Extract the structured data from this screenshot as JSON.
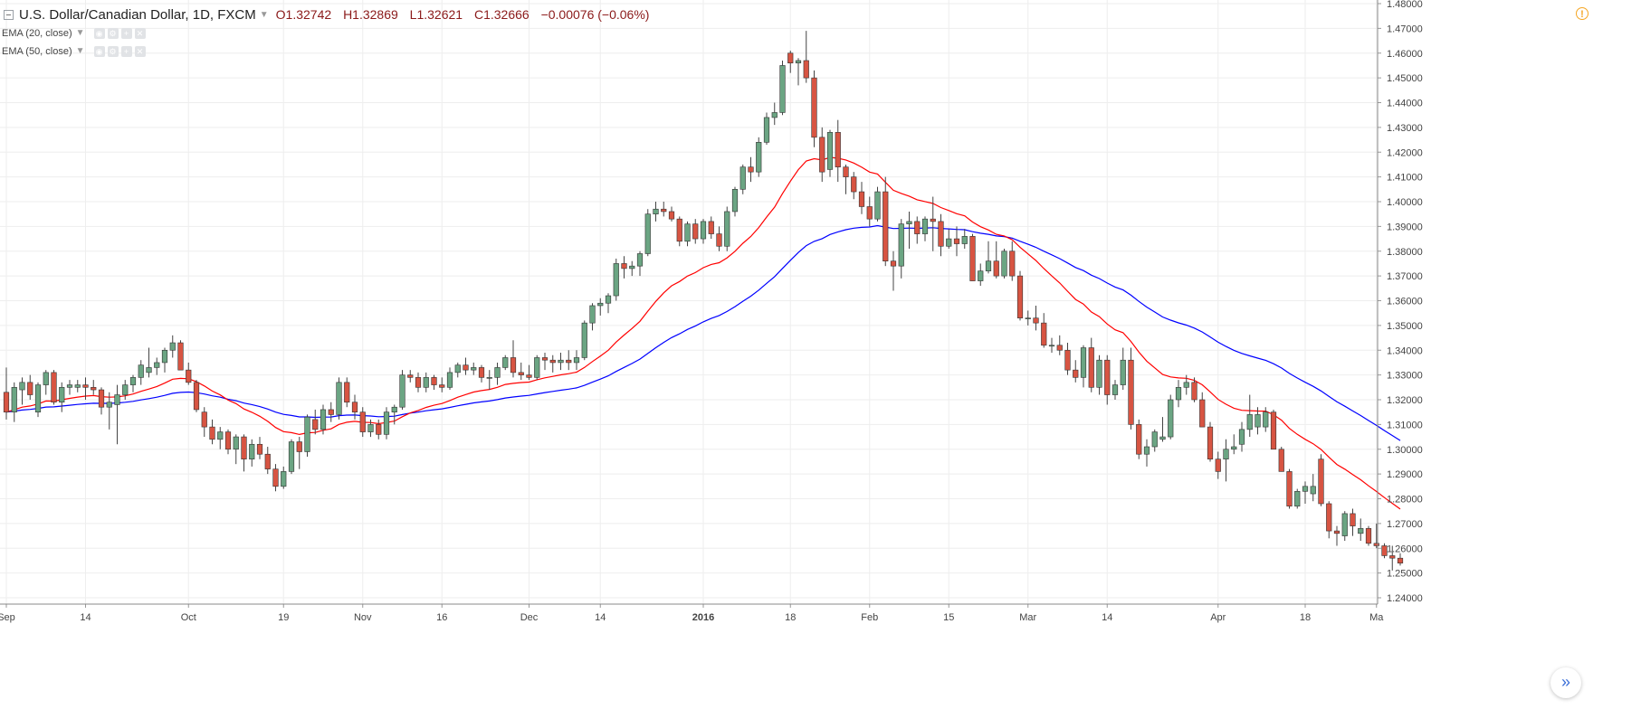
{
  "header": {
    "symbol_title": "U.S. Dollar/Canadian Dollar, 1D, FXCM",
    "open": "O1.32742",
    "high": "H1.32869",
    "low": "L1.32621",
    "close": "C1.32666",
    "change": "−0.00076 (−0.06%)",
    "indicators": [
      {
        "label": "EMA (20, close)"
      },
      {
        "label": "EMA (50, close)"
      }
    ],
    "alert_icon": "exclamation-icon",
    "scroll_icon": "double-chevron-right-icon"
  },
  "colors": {
    "up": "#6ba583",
    "down": "#d75442",
    "ema20": "#ff0000",
    "ema50": "#0000ff",
    "grid": "#eeeeee",
    "axis_text": "#444444",
    "header_values": "#8b1a1a"
  },
  "chart_data": {
    "type": "candlestick",
    "title": "U.S. Dollar/Canadian Dollar, 1D, FXCM",
    "y_axis_position": "right",
    "ylim": [
      1.24,
      1.48
    ],
    "y_ticks": [
      "1.24000",
      "1.25000",
      "1.26000",
      "1.27000",
      "1.28000",
      "1.29000",
      "1.30000",
      "1.31000",
      "1.32000",
      "1.33000",
      "1.34000",
      "1.35000",
      "1.36000",
      "1.37000",
      "1.38000",
      "1.39000",
      "1.40000",
      "1.41000",
      "1.42000",
      "1.43000",
      "1.44000",
      "1.45000",
      "1.46000",
      "1.47000",
      "1.48000"
    ],
    "x_ticks": [
      {
        "label": "Sep",
        "bar": 0,
        "bold": false
      },
      {
        "label": "14",
        "bar": 10,
        "bold": false
      },
      {
        "label": "Oct",
        "bar": 23,
        "bold": false
      },
      {
        "label": "19",
        "bar": 35,
        "bold": false
      },
      {
        "label": "Nov",
        "bar": 45,
        "bold": false
      },
      {
        "label": "16",
        "bar": 55,
        "bold": false
      },
      {
        "label": "Dec",
        "bar": 66,
        "bold": false
      },
      {
        "label": "14",
        "bar": 75,
        "bold": false
      },
      {
        "label": "2016",
        "bar": 88,
        "bold": true
      },
      {
        "label": "18",
        "bar": 99,
        "bold": false
      },
      {
        "label": "Feb",
        "bar": 109,
        "bold": false
      },
      {
        "label": "15",
        "bar": 119,
        "bold": false
      },
      {
        "label": "Mar",
        "bar": 129,
        "bold": false
      },
      {
        "label": "14",
        "bar": 139,
        "bold": false
      },
      {
        "label": "Apr",
        "bar": 153,
        "bold": false
      },
      {
        "label": "18",
        "bar": 164,
        "bold": false
      },
      {
        "label": "Ma",
        "bar": 173,
        "bold": false
      }
    ],
    "candles": [
      [
        1.323,
        1.333,
        1.312,
        1.315
      ],
      [
        1.315,
        1.327,
        1.311,
        1.325
      ],
      [
        1.324,
        1.329,
        1.318,
        1.327
      ],
      [
        1.327,
        1.33,
        1.32,
        1.322
      ],
      [
        1.315,
        1.327,
        1.313,
        1.326
      ],
      [
        1.326,
        1.332,
        1.322,
        1.331
      ],
      [
        1.331,
        1.332,
        1.318,
        1.319
      ],
      [
        1.319,
        1.327,
        1.315,
        1.325
      ],
      [
        1.325,
        1.328,
        1.322,
        1.326
      ],
      [
        1.325,
        1.328,
        1.323,
        1.326
      ],
      [
        1.326,
        1.329,
        1.32,
        1.325
      ],
      [
        1.325,
        1.328,
        1.322,
        1.324
      ],
      [
        1.324,
        1.325,
        1.314,
        1.317
      ],
      [
        1.317,
        1.323,
        1.308,
        1.319
      ],
      [
        1.318,
        1.326,
        1.302,
        1.322
      ],
      [
        1.322,
        1.328,
        1.32,
        1.326
      ],
      [
        1.326,
        1.33,
        1.323,
        1.329
      ],
      [
        1.329,
        1.336,
        1.326,
        1.334
      ],
      [
        1.331,
        1.341,
        1.329,
        1.333
      ],
      [
        1.333,
        1.337,
        1.33,
        1.335
      ],
      [
        1.335,
        1.341,
        1.331,
        1.34
      ],
      [
        1.34,
        1.346,
        1.337,
        1.343
      ],
      [
        1.343,
        1.344,
        1.333,
        1.332
      ],
      [
        1.332,
        1.335,
        1.326,
        1.327
      ],
      [
        1.327,
        1.328,
        1.315,
        1.316
      ],
      [
        1.315,
        1.317,
        1.305,
        1.309
      ],
      [
        1.309,
        1.312,
        1.302,
        1.304
      ],
      [
        1.304,
        1.309,
        1.3,
        1.307
      ],
      [
        1.307,
        1.308,
        1.298,
        1.3
      ],
      [
        1.3,
        1.306,
        1.294,
        1.305
      ],
      [
        1.305,
        1.306,
        1.291,
        1.296
      ],
      [
        1.296,
        1.304,
        1.293,
        1.302
      ],
      [
        1.302,
        1.305,
        1.296,
        1.298
      ],
      [
        1.298,
        1.301,
        1.29,
        1.292
      ],
      [
        1.292,
        1.294,
        1.283,
        1.285
      ],
      [
        1.285,
        1.293,
        1.284,
        1.291
      ],
      [
        1.291,
        1.304,
        1.29,
        1.303
      ],
      [
        1.303,
        1.305,
        1.292,
        1.299
      ],
      [
        1.299,
        1.314,
        1.297,
        1.313
      ],
      [
        1.312,
        1.316,
        1.306,
        1.308
      ],
      [
        1.308,
        1.318,
        1.306,
        1.316
      ],
      [
        1.316,
        1.319,
        1.311,
        1.314
      ],
      [
        1.314,
        1.329,
        1.312,
        1.327
      ],
      [
        1.327,
        1.329,
        1.317,
        1.319
      ],
      [
        1.319,
        1.322,
        1.312,
        1.315
      ],
      [
        1.315,
        1.317,
        1.305,
        1.307
      ],
      [
        1.307,
        1.312,
        1.305,
        1.31
      ],
      [
        1.31,
        1.312,
        1.304,
        1.306
      ],
      [
        1.306,
        1.317,
        1.304,
        1.315
      ],
      [
        1.315,
        1.318,
        1.31,
        1.317
      ],
      [
        1.317,
        1.332,
        1.316,
        1.33
      ],
      [
        1.33,
        1.332,
        1.327,
        1.329
      ],
      [
        1.329,
        1.331,
        1.323,
        1.325
      ],
      [
        1.325,
        1.331,
        1.323,
        1.329
      ],
      [
        1.329,
        1.33,
        1.324,
        1.326
      ],
      [
        1.326,
        1.329,
        1.323,
        1.325
      ],
      [
        1.325,
        1.333,
        1.324,
        1.331
      ],
      [
        1.331,
        1.335,
        1.329,
        1.334
      ],
      [
        1.334,
        1.337,
        1.33,
        1.332
      ],
      [
        1.332,
        1.335,
        1.33,
        1.333
      ],
      [
        1.333,
        1.334,
        1.327,
        1.329
      ],
      [
        1.329,
        1.332,
        1.324,
        1.329
      ],
      [
        1.329,
        1.335,
        1.326,
        1.333
      ],
      [
        1.333,
        1.338,
        1.332,
        1.337
      ],
      [
        1.337,
        1.344,
        1.329,
        1.331
      ],
      [
        1.331,
        1.335,
        1.328,
        1.33
      ],
      [
        1.33,
        1.334,
        1.328,
        1.329
      ],
      [
        1.329,
        1.338,
        1.328,
        1.337
      ],
      [
        1.337,
        1.339,
        1.332,
        1.336
      ],
      [
        1.336,
        1.338,
        1.331,
        1.335
      ],
      [
        1.335,
        1.339,
        1.332,
        1.336
      ],
      [
        1.336,
        1.34,
        1.332,
        1.335
      ],
      [
        1.335,
        1.34,
        1.332,
        1.337
      ],
      [
        1.337,
        1.352,
        1.336,
        1.351
      ],
      [
        1.351,
        1.359,
        1.348,
        1.358
      ],
      [
        1.358,
        1.361,
        1.354,
        1.359
      ],
      [
        1.359,
        1.363,
        1.355,
        1.362
      ],
      [
        1.362,
        1.377,
        1.36,
        1.375
      ],
      [
        1.375,
        1.378,
        1.369,
        1.373
      ],
      [
        1.373,
        1.376,
        1.37,
        1.374
      ],
      [
        1.374,
        1.38,
        1.37,
        1.379
      ],
      [
        1.379,
        1.397,
        1.378,
        1.395
      ],
      [
        1.395,
        1.4,
        1.392,
        1.397
      ],
      [
        1.397,
        1.4,
        1.394,
        1.396
      ],
      [
        1.396,
        1.398,
        1.392,
        1.393
      ],
      [
        1.393,
        1.394,
        1.382,
        1.384
      ],
      [
        1.384,
        1.392,
        1.382,
        1.391
      ],
      [
        1.391,
        1.393,
        1.383,
        1.385
      ],
      [
        1.385,
        1.393,
        1.383,
        1.392
      ],
      [
        1.392,
        1.394,
        1.385,
        1.387
      ],
      [
        1.387,
        1.39,
        1.38,
        1.382
      ],
      [
        1.382,
        1.398,
        1.38,
        1.396
      ],
      [
        1.396,
        1.406,
        1.394,
        1.405
      ],
      [
        1.405,
        1.415,
        1.403,
        1.414
      ],
      [
        1.414,
        1.418,
        1.408,
        1.412
      ],
      [
        1.412,
        1.426,
        1.41,
        1.424
      ],
      [
        1.424,
        1.436,
        1.423,
        1.434
      ],
      [
        1.434,
        1.44,
        1.431,
        1.436
      ],
      [
        1.436,
        1.457,
        1.435,
        1.455
      ],
      [
        1.46,
        1.461,
        1.452,
        1.456
      ],
      [
        1.456,
        1.458,
        1.447,
        1.457
      ],
      [
        1.457,
        1.469,
        1.448,
        1.45
      ],
      [
        1.45,
        1.453,
        1.422,
        1.426
      ],
      [
        1.426,
        1.43,
        1.408,
        1.412
      ],
      [
        1.413,
        1.429,
        1.41,
        1.428
      ],
      [
        1.428,
        1.433,
        1.408,
        1.414
      ],
      [
        1.414,
        1.415,
        1.403,
        1.41
      ],
      [
        1.41,
        1.412,
        1.401,
        1.404
      ],
      [
        1.404,
        1.408,
        1.395,
        1.398
      ],
      [
        1.398,
        1.402,
        1.39,
        1.393
      ],
      [
        1.393,
        1.406,
        1.392,
        1.404
      ],
      [
        1.404,
        1.41,
        1.374,
        1.376
      ],
      [
        1.376,
        1.38,
        1.364,
        1.374
      ],
      [
        1.374,
        1.393,
        1.369,
        1.391
      ],
      [
        1.391,
        1.396,
        1.381,
        1.392
      ],
      [
        1.392,
        1.394,
        1.383,
        1.387
      ],
      [
        1.387,
        1.394,
        1.384,
        1.393
      ],
      [
        1.393,
        1.402,
        1.38,
        1.392
      ],
      [
        1.392,
        1.395,
        1.378,
        1.382
      ],
      [
        1.382,
        1.389,
        1.381,
        1.385
      ],
      [
        1.385,
        1.39,
        1.378,
        1.383
      ],
      [
        1.383,
        1.389,
        1.381,
        1.386
      ],
      [
        1.386,
        1.387,
        1.368,
        1.368
      ],
      [
        1.368,
        1.375,
        1.366,
        1.372
      ],
      [
        1.372,
        1.384,
        1.371,
        1.376
      ],
      [
        1.376,
        1.384,
        1.369,
        1.37
      ],
      [
        1.37,
        1.381,
        1.369,
        1.38
      ],
      [
        1.38,
        1.384,
        1.368,
        1.37
      ],
      [
        1.37,
        1.372,
        1.352,
        1.353
      ],
      [
        1.353,
        1.356,
        1.35,
        1.353
      ],
      [
        1.353,
        1.358,
        1.348,
        1.351
      ],
      [
        1.351,
        1.355,
        1.341,
        1.342
      ],
      [
        1.342,
        1.345,
        1.339,
        1.342
      ],
      [
        1.342,
        1.346,
        1.338,
        1.34
      ],
      [
        1.34,
        1.343,
        1.33,
        1.332
      ],
      [
        1.332,
        1.336,
        1.327,
        1.329
      ],
      [
        1.329,
        1.342,
        1.325,
        1.341
      ],
      [
        1.341,
        1.345,
        1.323,
        1.325
      ],
      [
        1.325,
        1.338,
        1.322,
        1.336
      ],
      [
        1.336,
        1.338,
        1.318,
        1.322
      ],
      [
        1.322,
        1.328,
        1.32,
        1.326
      ],
      [
        1.326,
        1.341,
        1.324,
        1.336
      ],
      [
        1.336,
        1.341,
        1.308,
        1.31
      ],
      [
        1.31,
        1.312,
        1.296,
        1.298
      ],
      [
        1.298,
        1.304,
        1.293,
        1.301
      ],
      [
        1.301,
        1.308,
        1.299,
        1.307
      ],
      [
        1.304,
        1.313,
        1.303,
        1.305
      ],
      [
        1.305,
        1.322,
        1.304,
        1.32
      ],
      [
        1.32,
        1.328,
        1.317,
        1.325
      ],
      [
        1.325,
        1.33,
        1.322,
        1.327
      ],
      [
        1.327,
        1.329,
        1.319,
        1.32
      ],
      [
        1.32,
        1.323,
        1.309,
        1.309
      ],
      [
        1.309,
        1.311,
        1.295,
        1.296
      ],
      [
        1.296,
        1.299,
        1.288,
        1.291
      ],
      [
        1.296,
        1.304,
        1.287,
        1.3
      ],
      [
        1.3,
        1.306,
        1.298,
        1.301
      ],
      [
        1.302,
        1.311,
        1.299,
        1.308
      ],
      [
        1.308,
        1.322,
        1.305,
        1.314
      ],
      [
        1.309,
        1.317,
        1.306,
        1.314
      ],
      [
        1.309,
        1.317,
        1.307,
        1.315
      ],
      [
        1.315,
        1.316,
        1.3,
        1.3
      ],
      [
        1.3,
        1.301,
        1.291,
        1.291
      ],
      [
        1.291,
        1.292,
        1.276,
        1.277
      ],
      [
        1.277,
        1.284,
        1.276,
        1.283
      ],
      [
        1.283,
        1.287,
        1.278,
        1.285
      ],
      [
        1.282,
        1.29,
        1.279,
        1.285
      ],
      [
        1.296,
        1.298,
        1.277,
        1.278
      ],
      [
        1.278,
        1.279,
        1.264,
        1.267
      ],
      [
        1.267,
        1.269,
        1.261,
        1.266
      ],
      [
        1.265,
        1.275,
        1.263,
        1.274
      ],
      [
        1.274,
        1.276,
        1.265,
        1.269
      ],
      [
        1.266,
        1.272,
        1.263,
        1.268
      ],
      [
        1.268,
        1.269,
        1.261,
        1.262
      ],
      [
        1.262,
        1.27,
        1.26,
        1.261
      ],
      [
        1.261,
        1.262,
        1.256,
        1.257
      ],
      [
        1.257,
        1.261,
        1.251,
        1.256
      ],
      [
        1.256,
        1.258,
        1.253,
        1.254
      ]
    ]
  }
}
